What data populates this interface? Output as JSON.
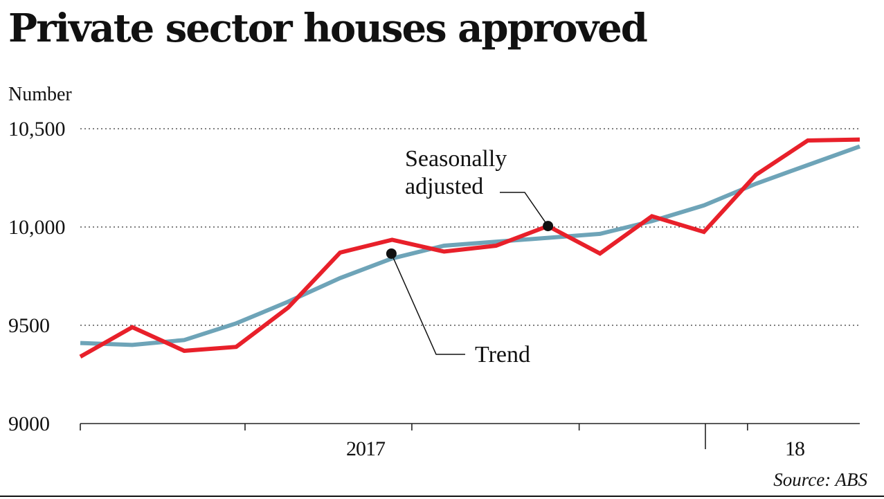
{
  "chart_data": {
    "type": "line",
    "title": "Private sector houses approved",
    "ylabel": "Number",
    "ylim": [
      9000,
      10500
    ],
    "yticks": [
      {
        "value": 10500,
        "label": "10,500"
      },
      {
        "value": 10000,
        "label": "10,000"
      },
      {
        "value": 9500,
        "label": "9500"
      },
      {
        "value": 9000,
        "label": "9000"
      }
    ],
    "x_labels": [
      {
        "label": "2017",
        "index": 6
      },
      {
        "label": "18",
        "index": 15
      }
    ],
    "series": [
      {
        "name": "Trend",
        "color": "#6ea4b8",
        "values": [
          9410,
          9400,
          9425,
          9510,
          9620,
          9740,
          9840,
          9905,
          9925,
          9945,
          9965,
          10030,
          10110,
          10220,
          10315,
          10410
        ]
      },
      {
        "name": "Seasonally adjusted",
        "color": "#e8202a",
        "values": [
          9340,
          9490,
          9370,
          9390,
          9590,
          9870,
          9935,
          9875,
          9905,
          10005,
          9865,
          10055,
          9975,
          10265,
          10440,
          10445
        ]
      }
    ],
    "annotations": [
      {
        "label": "Seasonally\nadjusted",
        "series": "Seasonally adjusted",
        "index": 9
      },
      {
        "label": "Trend",
        "series": "Trend",
        "index": 6
      }
    ],
    "source": "Source: ABS"
  }
}
